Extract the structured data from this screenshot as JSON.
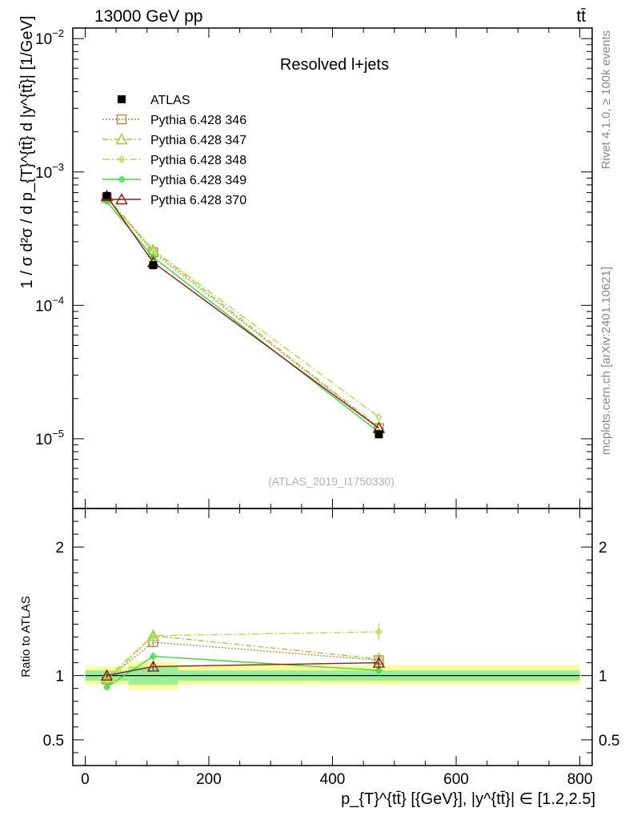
{
  "chart_data": {
    "type": "line",
    "header_left": "13000 GeV pp",
    "header_right": "tt̄",
    "panel_title": "Resolved l+jets",
    "watermark": "(ATLAS_2019_I1750330)",
    "side_label_top": "Rivet 4.1.0, ≥ 100k events",
    "side_label_bottom": "mcplots.cern.ch [arXiv:2401.10621]",
    "xlabel": "p_{T}^{tt̄} [{GeV}], |y^{tt̄}| ∈ [1.2,2.5]",
    "ylabel": "1 / σ d²σ / d p_{T}^{tt̄} d |y^{tt̄}| [1/GeV]",
    "ratio_ylabel": "Ratio to ATLAS",
    "xlim": [
      -20,
      820
    ],
    "ylim": [
      3e-06,
      0.012
    ],
    "ratio_ylim": [
      0.3,
      2.3
    ],
    "x_ticks": [
      {
        "value": 0,
        "label": "0"
      },
      {
        "value": 200,
        "label": "200"
      },
      {
        "value": 400,
        "label": "400"
      },
      {
        "value": 600,
        "label": "600"
      },
      {
        "value": 800,
        "label": "800"
      }
    ],
    "y_ticks": [
      {
        "value": 1e-05,
        "base": "10",
        "exp": "−5"
      },
      {
        "value": 0.0001,
        "base": "10",
        "exp": "−4"
      },
      {
        "value": 0.001,
        "base": "10",
        "exp": "−3"
      },
      {
        "value": 0.01,
        "base": "10",
        "exp": "−2"
      }
    ],
    "ratio_ticks": [
      {
        "value": 0.5,
        "label": "0.5"
      },
      {
        "value": 1,
        "label": "1"
      },
      {
        "value": 2,
        "label": "2"
      }
    ],
    "bins": [
      {
        "lo": 0,
        "hi": 70
      },
      {
        "lo": 70,
        "hi": 150
      },
      {
        "lo": 150,
        "hi": 800
      }
    ],
    "data": {
      "name": "ATLAS",
      "x": [
        35,
        110,
        475
      ],
      "y": [
        0.00066,
        0.0002,
        1.08e-05
      ],
      "ratio_band_inner": [
        [
          0.96,
          1.04
        ],
        [
          0.93,
          1.07
        ],
        [
          0.96,
          1.04
        ]
      ],
      "ratio_band_outer": [
        [
          0.93,
          1.07
        ],
        [
          0.89,
          1.11
        ],
        [
          0.93,
          1.08
        ]
      ]
    },
    "series": [
      {
        "name": "Pythia 6.428 346",
        "color": "#b8864b",
        "dash": "2,2",
        "marker": "square",
        "x": [
          35,
          110,
          475
        ],
        "y": [
          0.00064,
          0.00025,
          1.2e-05
        ],
        "ratio": [
          0.97,
          1.26,
          1.12
        ],
        "ratio_err": [
          0.02,
          0.03,
          0.05
        ]
      },
      {
        "name": "Pythia 6.428 347",
        "color": "#9acd32",
        "dash": "7,3,2,3",
        "marker": "triangle",
        "x": [
          35,
          110,
          475
        ],
        "y": [
          0.00065,
          0.00026,
          1.22e-05
        ],
        "ratio": [
          0.98,
          1.31,
          1.13
        ],
        "ratio_err": [
          0.02,
          0.03,
          0.05
        ]
      },
      {
        "name": "Pythia 6.428 348",
        "color": "#a8e040",
        "dash": "9,3,2,3",
        "marker": "diamond",
        "x": [
          35,
          110,
          475
        ],
        "y": [
          0.00063,
          0.00026,
          1.45e-05
        ],
        "ratio": [
          0.96,
          1.31,
          1.34
        ],
        "ratio_err": [
          0.02,
          0.03,
          0.07
        ]
      },
      {
        "name": "Pythia 6.428 349",
        "color": "#33dd33",
        "dash": "",
        "marker": "cross",
        "x": [
          35,
          110,
          475
        ],
        "y": [
          0.0006,
          0.00023,
          1.12e-05
        ],
        "ratio": [
          0.91,
          1.15,
          1.04
        ],
        "ratio_err": [
          0.02,
          0.03,
          0.05
        ]
      },
      {
        "name": "Pythia 6.428 370",
        "color": "#8b1a1a",
        "dash": "",
        "marker": "triangle",
        "x": [
          35,
          110,
          475
        ],
        "y": [
          0.00066,
          0.00021,
          1.2e-05
        ],
        "ratio": [
          1.0,
          1.07,
          1.1
        ],
        "ratio_err": [
          0.02,
          0.03,
          0.05
        ]
      }
    ]
  }
}
